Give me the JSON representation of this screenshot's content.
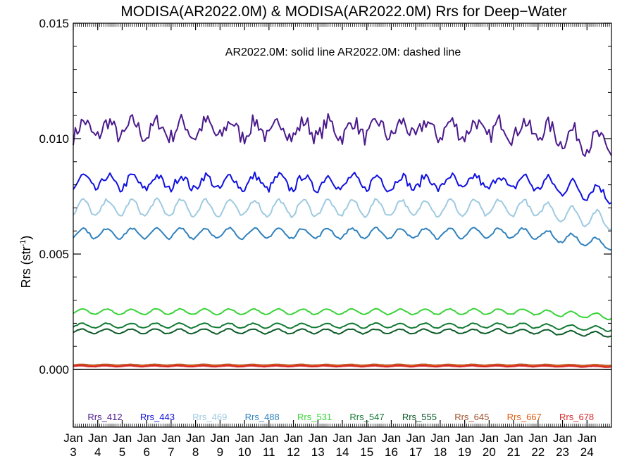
{
  "chart_data": {
    "type": "line",
    "title": "MODISA(AR2022.0M) & MODISA(AR2022.0M)  Rrs for Deep−Water",
    "subtitle": "AR2022.0M: solid line   AR2022.0M: dashed line",
    "ylabel_main": "Rrs (str",
    "ylabel_sup": "-1",
    "ylabel_close": ")",
    "xlabel": "",
    "ylim": [
      -0.0025,
      0.015
    ],
    "xlim": [
      2003,
      2025
    ],
    "yticks": [
      {
        "value": 0.0,
        "label": "0.000"
      },
      {
        "value": 0.005,
        "label": "0.005"
      },
      {
        "value": 0.01,
        "label": "0.010"
      },
      {
        "value": 0.015,
        "label": "0.015"
      }
    ],
    "xticks": [
      {
        "value": 2003,
        "top": "Jan",
        "bottom": "3"
      },
      {
        "value": 2004,
        "top": "Jan",
        "bottom": "4"
      },
      {
        "value": 2005,
        "top": "Jan",
        "bottom": "5"
      },
      {
        "value": 2006,
        "top": "Jan",
        "bottom": "6"
      },
      {
        "value": 2007,
        "top": "Jan",
        "bottom": "7"
      },
      {
        "value": 2008,
        "top": "Jan",
        "bottom": "8"
      },
      {
        "value": 2009,
        "top": "Jan",
        "bottom": "9"
      },
      {
        "value": 2010,
        "top": "Jan",
        "bottom": "10"
      },
      {
        "value": 2011,
        "top": "Jan",
        "bottom": "11"
      },
      {
        "value": 2012,
        "top": "Jan",
        "bottom": "12"
      },
      {
        "value": 2013,
        "top": "Jan",
        "bottom": "13"
      },
      {
        "value": 2014,
        "top": "Jan",
        "bottom": "14"
      },
      {
        "value": 2015,
        "top": "Jan",
        "bottom": "15"
      },
      {
        "value": 2016,
        "top": "Jan",
        "bottom": "16"
      },
      {
        "value": 2017,
        "top": "Jan",
        "bottom": "17"
      },
      {
        "value": 2018,
        "top": "Jan",
        "bottom": "18"
      },
      {
        "value": 2019,
        "top": "Jan",
        "bottom": "19"
      },
      {
        "value": 2020,
        "top": "Jan",
        "bottom": "20"
      },
      {
        "value": 2021,
        "top": "Jan",
        "bottom": "21"
      },
      {
        "value": 2022,
        "top": "Jan",
        "bottom": "22"
      },
      {
        "value": 2023,
        "top": "Jan",
        "bottom": "23"
      },
      {
        "value": 2024,
        "top": "Jan",
        "bottom": "24"
      }
    ],
    "grid": false,
    "legend_position": "bottom",
    "zero_line": true,
    "series": [
      {
        "name": "Rrs_412",
        "color": "#4b1a8c",
        "mean": 0.0104,
        "amp": 0.00035,
        "noise": 0.00035,
        "end": 0.0097
      },
      {
        "name": "Rrs_443",
        "color": "#1010e0",
        "mean": 0.0081,
        "amp": 0.0003,
        "noise": 0.00018,
        "end": 0.0076
      },
      {
        "name": "Rrs_469",
        "color": "#9ecae1",
        "mean": 0.007,
        "amp": 0.00035,
        "noise": 8e-05,
        "end": 0.0064
      },
      {
        "name": "Rrs_488",
        "color": "#3182bd",
        "mean": 0.0059,
        "amp": 0.00022,
        "noise": 5e-05,
        "end": 0.0054
      },
      {
        "name": "Rrs_531",
        "color": "#39d339",
        "mean": 0.0025,
        "amp": 0.00012,
        "noise": 2e-05,
        "end": 0.00228
      },
      {
        "name": "Rrs_547",
        "color": "#137a34",
        "mean": 0.0019,
        "amp": 0.0001,
        "noise": 2e-05,
        "end": 0.00175
      },
      {
        "name": "Rrs_555",
        "color": "#0c5a28",
        "mean": 0.00165,
        "amp": 0.0001,
        "noise": 2e-05,
        "end": 0.0015
      },
      {
        "name": "Rrs_645",
        "color": "#a0522d",
        "mean": 0.0002,
        "amp": 2e-05,
        "noise": 5e-06,
        "end": 0.00018
      },
      {
        "name": "Rrs_667",
        "color": "#e25b0e",
        "mean": 0.00017,
        "amp": 2e-05,
        "noise": 5e-06,
        "end": 0.00015
      },
      {
        "name": "Rrs_678",
        "color": "#d62728",
        "mean": 0.00014,
        "amp": 2e-05,
        "noise": 5e-06,
        "end": 0.00012
      }
    ]
  }
}
